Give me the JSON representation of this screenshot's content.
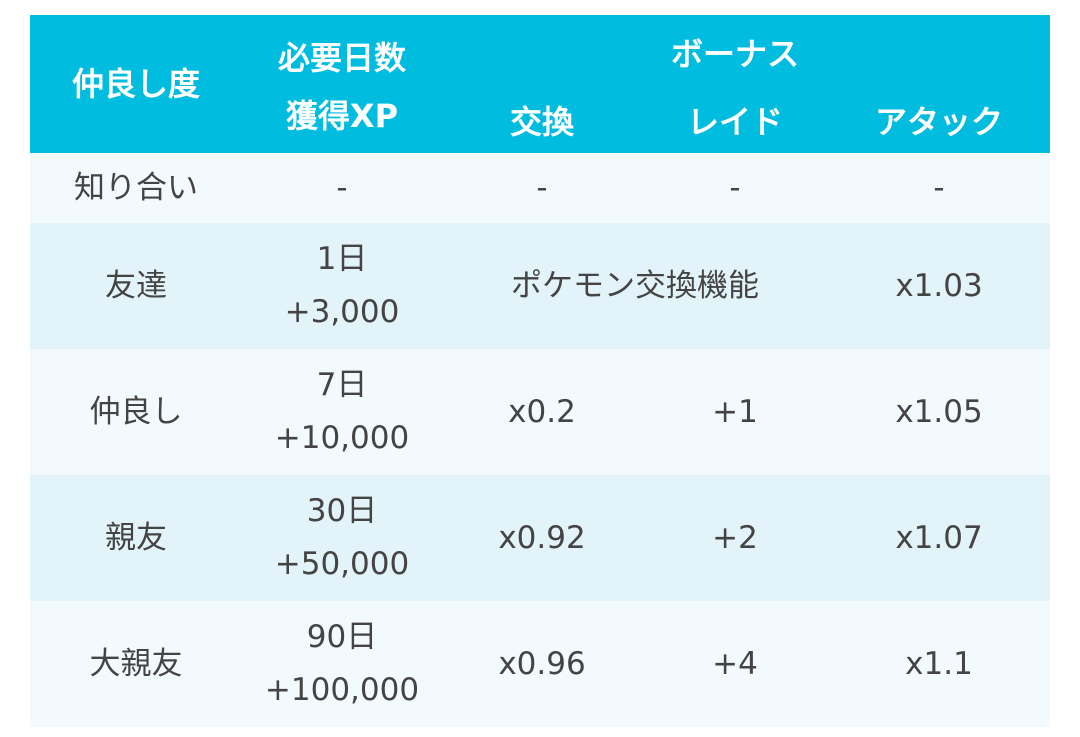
{
  "header": {
    "friendship": "仲良し度",
    "days_required": "必要日数",
    "xp_gained": "獲得XP",
    "bonus": "ボーナス",
    "trade": "交換",
    "raid": "レイド",
    "attack": "アタック"
  },
  "rows": [
    {
      "level": "知り合い",
      "days": "",
      "xp": "-",
      "trade": "-",
      "raid": "-",
      "attack": "-"
    },
    {
      "level": "友達",
      "days": "1日",
      "xp": "+3,000",
      "merged": "ポケモン交換機能",
      "attack": "x1.03"
    },
    {
      "level": "仲良し",
      "days": "7日",
      "xp": "+10,000",
      "trade": "x0.2",
      "raid": "+1",
      "attack": "x1.05"
    },
    {
      "level": "親友",
      "days": "30日",
      "xp": "+50,000",
      "trade": "x0.92",
      "raid": "+2",
      "attack": "x1.07"
    },
    {
      "level": "大親友",
      "days": "90日",
      "xp": "+100,000",
      "trade": "x0.96",
      "raid": "+4",
      "attack": "x1.1"
    }
  ],
  "colors": {
    "header_bg": "#00bcdf",
    "row_light": "#f3fafd",
    "row_tint": "#e3f3fa",
    "text": "#444444"
  }
}
